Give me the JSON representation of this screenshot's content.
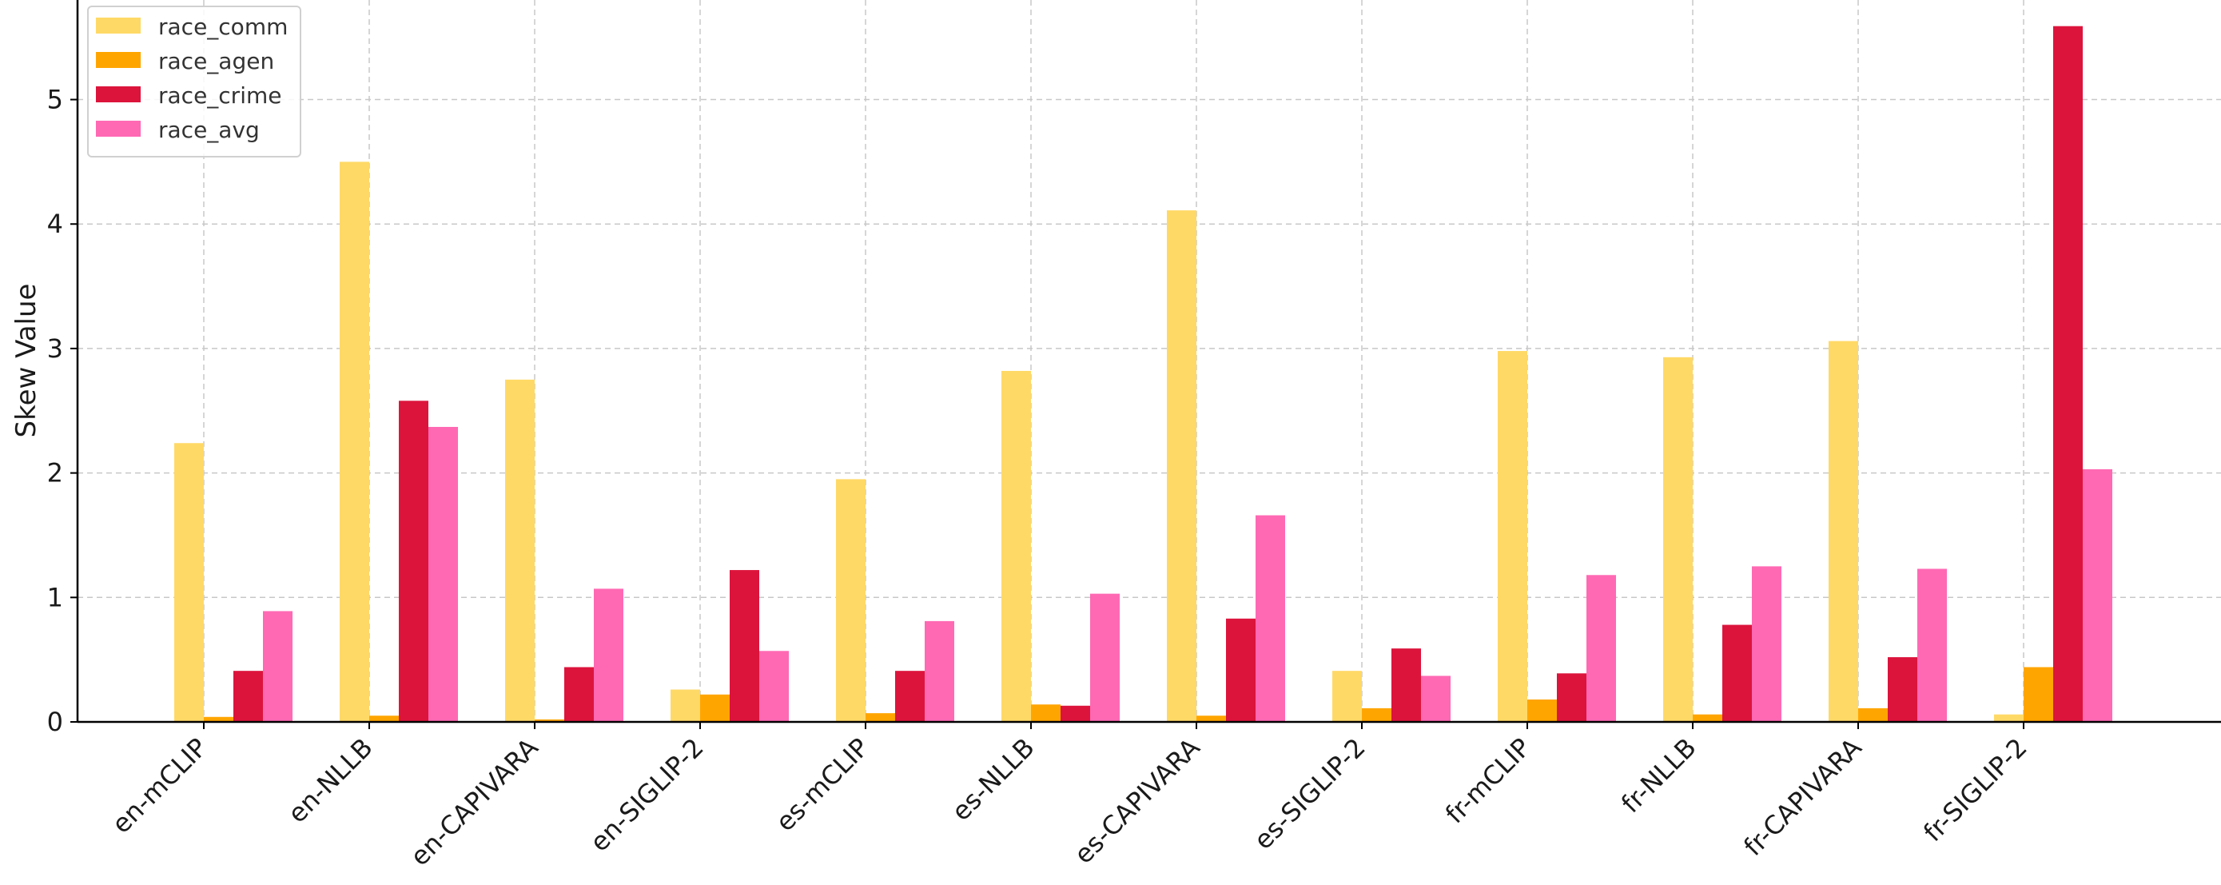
{
  "chart_data": {
    "type": "bar",
    "title": "",
    "xlabel": "",
    "ylabel": "Skew Value",
    "ylim": [
      0,
      5.8
    ],
    "yticks": [
      0,
      1,
      2,
      3,
      4,
      5
    ],
    "grid": true,
    "legend_position": "top-left",
    "categories": [
      "en-mCLIP",
      "en-NLLB",
      "en-CAPIVARA",
      "en-SIGLIP-2",
      "es-mCLIP",
      "es-NLLB",
      "es-CAPIVARA",
      "es-SIGLIP-2",
      "fr-mCLIP",
      "fr-NLLB",
      "fr-CAPIVARA",
      "fr-SIGLIP-2"
    ],
    "series": [
      {
        "name": "race_comm",
        "color": "#FFD966",
        "values": [
          2.24,
          4.5,
          2.75,
          0.26,
          1.95,
          2.82,
          4.11,
          0.41,
          2.98,
          2.93,
          3.06,
          0.06
        ]
      },
      {
        "name": "race_agen",
        "color": "#FFA500",
        "values": [
          0.04,
          0.05,
          0.02,
          0.22,
          0.07,
          0.14,
          0.05,
          0.11,
          0.18,
          0.06,
          0.11,
          0.44
        ]
      },
      {
        "name": "race_crime",
        "color": "#DC143C",
        "values": [
          0.41,
          2.58,
          0.44,
          1.22,
          0.41,
          0.13,
          0.83,
          0.59,
          0.39,
          0.78,
          0.52,
          5.59
        ]
      },
      {
        "name": "race_avg",
        "color": "#FF69B4",
        "values": [
          0.89,
          2.37,
          1.07,
          0.57,
          0.81,
          1.03,
          1.66,
          0.37,
          1.18,
          1.25,
          1.23,
          2.03
        ]
      }
    ]
  }
}
